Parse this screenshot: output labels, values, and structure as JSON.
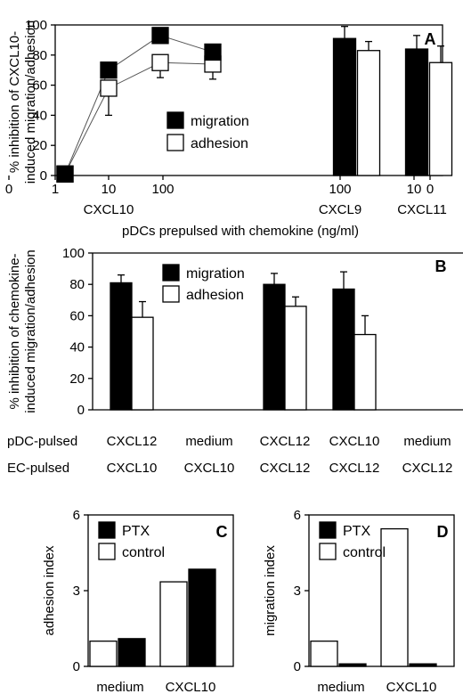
{
  "chart_data": [
    {
      "panel": "A",
      "type": "line+bar",
      "ylabel": "% inhibition of CXCL10-induced migration/adhesion",
      "ylabel_lines": [
        "% inhibition of CXCL10-",
        "induced migration/adhesion"
      ],
      "xlabel": "pDCs prepulsed with chemokine (ng/ml)",
      "ylim": [
        0,
        100
      ],
      "yticks": [
        "0",
        "20",
        "40",
        "60",
        "80",
        "100"
      ],
      "xtick_labels": [
        "0",
        "1",
        "10",
        "100",
        "100",
        "10",
        "0"
      ],
      "group_labels": [
        "CXCL10",
        "CXCL9",
        "CXCL11"
      ],
      "legend": {
        "items": [
          "migration",
          "adhesion"
        ],
        "placement": "middle"
      },
      "line_series": {
        "x": [
          "0",
          "1",
          "10",
          "100"
        ],
        "series": [
          {
            "name": "migration",
            "color": "#000000",
            "values": [
              1,
              70,
              93,
              82
            ]
          },
          {
            "name": "adhesion",
            "color": "#ffffff",
            "values": [
              1,
              58,
              75,
              74
            ],
            "errors": [
              0,
              18,
              10,
              10
            ]
          }
        ]
      },
      "bar_series": {
        "categories": [
          "CXCL9 100",
          "CXCL11 100"
        ],
        "series": [
          {
            "name": "migration",
            "color": "#000000",
            "values": [
              91,
              84
            ],
            "errors": [
              8,
              9
            ]
          },
          {
            "name": "adhesion",
            "color": "#ffffff",
            "values": [
              83,
              75
            ],
            "errors": [
              6,
              11
            ]
          }
        ]
      }
    },
    {
      "panel": "B",
      "type": "bar",
      "ylabel": "% inhibition of chemokine-induced migration/adhesion",
      "ylabel_lines": [
        "% inhibition of chemokine-",
        "induced migration/adhesion"
      ],
      "ylim": [
        0,
        100
      ],
      "yticks": [
        "0",
        "20",
        "40",
        "60",
        "80",
        "100"
      ],
      "legend": {
        "items": [
          "migration",
          "adhesion"
        ],
        "placement": "top"
      },
      "row_labels": [
        "pDC-pulsed",
        "EC-pulsed"
      ],
      "categories_pdc": [
        "CXCL12",
        "medium",
        "CXCL12",
        "CXCL10",
        "medium"
      ],
      "categories_ec": [
        "CXCL10",
        "CXCL10",
        "CXCL12",
        "CXCL12",
        "CXCL12"
      ],
      "series": [
        {
          "name": "migration",
          "color": "#000000",
          "values": [
            81,
            0,
            80,
            77,
            0
          ],
          "errors": [
            5,
            0,
            7,
            11,
            0
          ]
        },
        {
          "name": "adhesion",
          "color": "#ffffff",
          "values": [
            59,
            0,
            66,
            48,
            0
          ],
          "errors": [
            10,
            0,
            6,
            12,
            0
          ]
        }
      ]
    },
    {
      "panel": "C",
      "type": "bar",
      "ylabel": "adhesion index",
      "ylim": [
        0,
        6
      ],
      "yticks": [
        "0",
        "3",
        "6"
      ],
      "categories": [
        "medium",
        "CXCL10"
      ],
      "legend": {
        "items": [
          "PTX",
          "control"
        ],
        "placement": "top-left"
      },
      "series": [
        {
          "name": "control",
          "color": "#ffffff",
          "values": [
            1.0,
            3.35
          ]
        },
        {
          "name": "PTX",
          "color": "#000000",
          "values": [
            1.1,
            3.85
          ]
        }
      ]
    },
    {
      "panel": "D",
      "type": "bar",
      "ylabel": "migration index",
      "ylim": [
        0,
        6
      ],
      "yticks": [
        "0",
        "3",
        "6"
      ],
      "categories": [
        "medium",
        "CXCL10"
      ],
      "legend": {
        "items": [
          "PTX",
          "control"
        ],
        "placement": "top-left"
      },
      "series": [
        {
          "name": "control",
          "color": "#ffffff",
          "values": [
            1.0,
            5.45
          ]
        },
        {
          "name": "PTX",
          "color": "#000000",
          "values": [
            0.1,
            0.1
          ]
        }
      ]
    }
  ]
}
